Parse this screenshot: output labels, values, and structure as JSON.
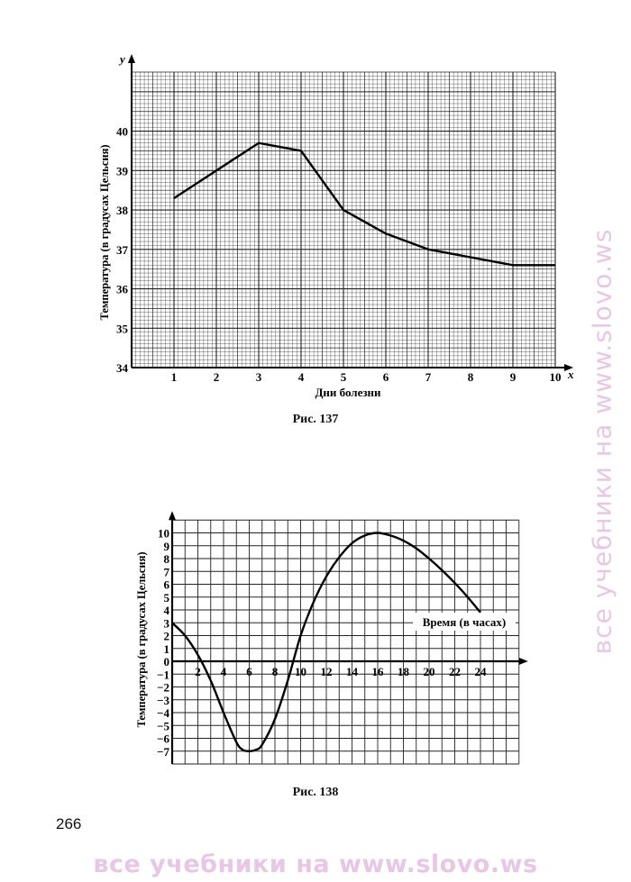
{
  "page_number": "266",
  "watermark_text": "все учебники на www.slovo.ws",
  "chart_data": [
    {
      "type": "line",
      "caption": "Рис. 137",
      "xlabel": "Дни болезни",
      "ylabel": "Температура (в градусах Цельсия)",
      "x_axis_letter": "x",
      "y_axis_letter": "y",
      "xlim": [
        0,
        10
      ],
      "ylim": [
        34,
        41.5
      ],
      "x_ticks": [
        1,
        2,
        3,
        4,
        5,
        6,
        7,
        8,
        9,
        10
      ],
      "y_ticks": [
        34,
        35,
        36,
        37,
        38,
        39,
        40
      ],
      "grid": true,
      "series": [
        {
          "x": [
            1,
            3,
            4,
            5,
            6,
            7,
            8,
            9,
            10
          ],
          "y": [
            38.3,
            39.7,
            39.5,
            38.0,
            37.4,
            37.0,
            36.8,
            36.6,
            36.6
          ]
        }
      ]
    },
    {
      "type": "line",
      "caption": "Рис. 138",
      "xlabel": "Время (в часах)",
      "ylabel": "Температура (в градусах Цельсия)",
      "xlim": [
        0,
        27
      ],
      "ylim": [
        -8,
        11
      ],
      "x_ticks": [
        2,
        4,
        6,
        8,
        10,
        12,
        14,
        16,
        18,
        20,
        22,
        24
      ],
      "y_ticks": [
        -7,
        -6,
        -5,
        -4,
        -3,
        -2,
        -1,
        0,
        1,
        2,
        3,
        4,
        5,
        6,
        7,
        8,
        9,
        10
      ],
      "grid": true,
      "series": [
        {
          "x": [
            0,
            1,
            2,
            3,
            4,
            5,
            5.5,
            6,
            6.5,
            7,
            8,
            9,
            10,
            11,
            12,
            13,
            14,
            15,
            16,
            17,
            18,
            19,
            20,
            21,
            22,
            23,
            24
          ],
          "y": [
            3,
            2,
            0.5,
            -1.5,
            -4,
            -6.3,
            -6.9,
            -7,
            -6.9,
            -6.5,
            -4.5,
            -1.5,
            2,
            4.6,
            6.6,
            8.1,
            9.2,
            9.8,
            10,
            9.8,
            9.4,
            8.8,
            8,
            7.1,
            6.1,
            5,
            3.8
          ]
        }
      ]
    }
  ]
}
